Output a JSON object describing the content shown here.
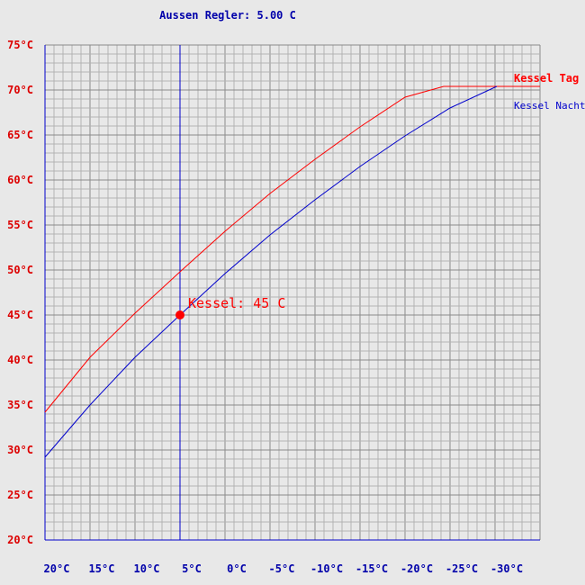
{
  "header": {
    "title": "Aussen Regler: 5.00 C"
  },
  "chart_data": {
    "type": "line",
    "title": "Aussen Regler: 5.00 C",
    "xlabel": "",
    "ylabel": "",
    "xlim": [
      20,
      -35
    ],
    "ylim": [
      20,
      75
    ],
    "grid": true,
    "legend_position": "right",
    "x_ticks": [
      "20°C",
      "15°C",
      "10°C",
      "5°C",
      "0°C",
      "-5°C",
      "-10°C",
      "-15°C",
      "-20°C",
      "-25°C",
      "-30°C"
    ],
    "x_tick_values": [
      20,
      15,
      10,
      5,
      0,
      -5,
      -10,
      -15,
      -20,
      -25,
      -30
    ],
    "y_ticks": [
      "20°C",
      "25°C",
      "30°C",
      "35°C",
      "40°C",
      "45°C",
      "50°C",
      "55°C",
      "60°C",
      "65°C",
      "70°C",
      "75°C"
    ],
    "y_tick_values": [
      20,
      25,
      30,
      35,
      40,
      45,
      50,
      55,
      60,
      65,
      70,
      75
    ],
    "series": [
      {
        "name": "Kessel Tag",
        "color": "#ff0000",
        "x": [
          20,
          15,
          10,
          5,
          0,
          -5,
          -10,
          -15,
          -20,
          -24.3,
          -30,
          -35
        ],
        "y": [
          34.2,
          40.3,
          45.2,
          49.8,
          54.3,
          58.5,
          62.3,
          65.9,
          69.2,
          70.4,
          70.4,
          70.4
        ]
      },
      {
        "name": "Kessel Nacht",
        "color": "#0000cc",
        "x": [
          20,
          15,
          10,
          5,
          0,
          -5,
          -10,
          -15,
          -20,
          -25,
          -30.2
        ],
        "y": [
          29.2,
          35.0,
          40.3,
          45.0,
          49.6,
          53.9,
          57.8,
          61.5,
          64.9,
          68.0,
          70.4
        ]
      }
    ],
    "vertical_marker": {
      "x": 5,
      "color": "#0000cc"
    },
    "annotation": {
      "x": 5,
      "y": 45,
      "text": "Kessel: 45 C",
      "color": "#ff0000"
    }
  }
}
